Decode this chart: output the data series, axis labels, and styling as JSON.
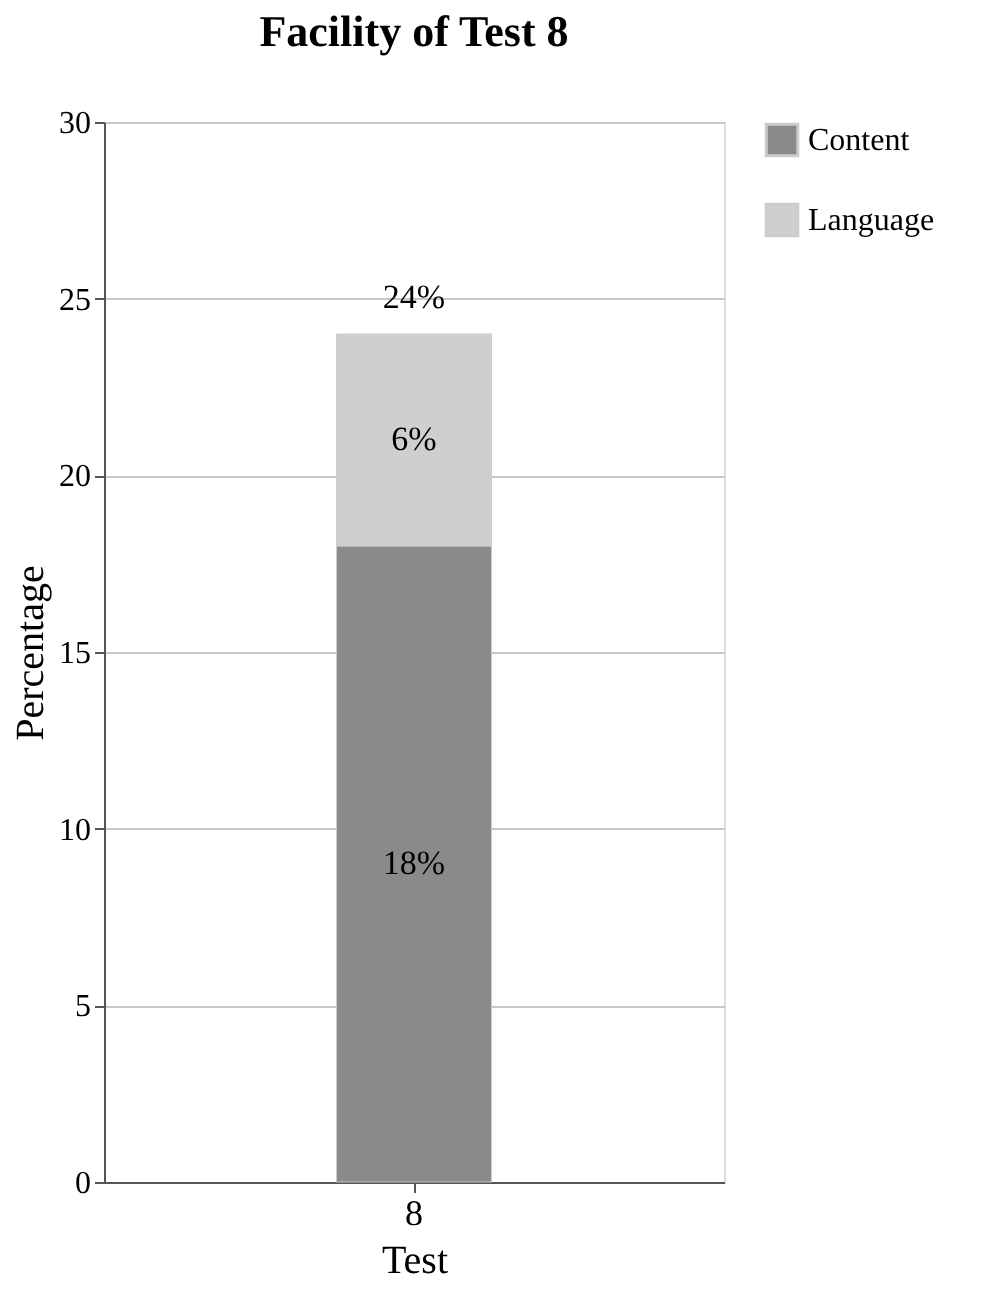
{
  "chart_data": {
    "type": "bar",
    "title": "Facility of Test 8",
    "xlabel": "Test",
    "ylabel": "Percentage",
    "categories": [
      "8"
    ],
    "stacked": true,
    "series": [
      {
        "name": "Content",
        "color": "#8a8a8a",
        "values": [
          18
        ],
        "value_labels": [
          "18%"
        ]
      },
      {
        "name": "Language",
        "color": "#cfcfcf",
        "values": [
          6
        ],
        "value_labels": [
          "6%"
        ]
      }
    ],
    "totals": [
      "24%"
    ],
    "ylim": [
      0,
      30
    ],
    "yticks": [
      0,
      5,
      10,
      15,
      20,
      25,
      30
    ],
    "grid": "y",
    "legend": "right"
  }
}
